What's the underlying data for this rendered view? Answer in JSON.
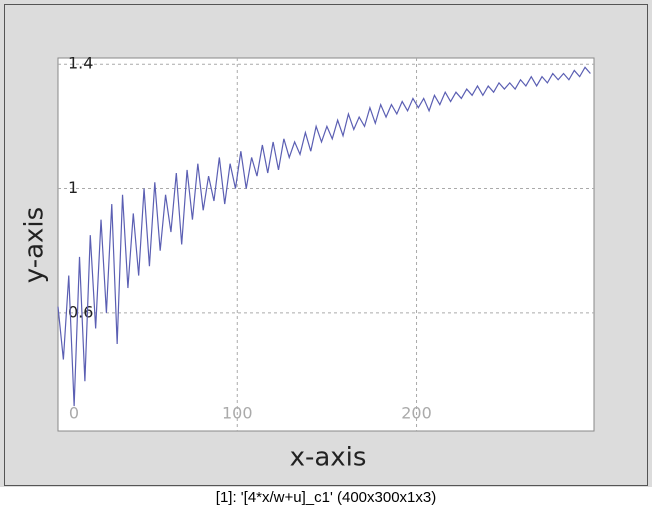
{
  "chart_data": {
    "type": "line",
    "x_label": "x-axis",
    "y_label": "y-axis",
    "xlim": [
      0,
      299
    ],
    "ylim": [
      0.22,
      1.42
    ],
    "xticks": [
      0,
      100,
      200
    ],
    "yticks": [
      1.4,
      1,
      0.6
    ],
    "grid": true,
    "x": [
      0,
      3,
      6,
      9,
      12,
      15,
      18,
      21,
      24,
      27,
      30,
      33,
      36,
      39,
      42,
      45,
      48,
      51,
      54,
      57,
      60,
      63,
      66,
      69,
      72,
      75,
      78,
      81,
      84,
      87,
      90,
      93,
      96,
      99,
      102,
      105,
      108,
      111,
      114,
      117,
      120,
      123,
      126,
      129,
      132,
      135,
      138,
      141,
      144,
      147,
      150,
      153,
      156,
      159,
      162,
      165,
      168,
      171,
      174,
      177,
      180,
      183,
      186,
      189,
      192,
      195,
      198,
      201,
      204,
      207,
      210,
      213,
      216,
      219,
      222,
      225,
      228,
      231,
      234,
      237,
      240,
      243,
      246,
      249,
      252,
      255,
      258,
      261,
      264,
      267,
      270,
      273,
      276,
      279,
      282,
      285,
      288,
      291,
      294,
      297
    ],
    "series": [
      {
        "color": "#5b5fb3",
        "values": [
          0.62,
          0.45,
          0.72,
          0.3,
          0.78,
          0.38,
          0.85,
          0.55,
          0.9,
          0.6,
          0.95,
          0.5,
          0.98,
          0.68,
          0.92,
          0.72,
          1.0,
          0.75,
          1.02,
          0.8,
          0.98,
          0.86,
          1.05,
          0.82,
          1.06,
          0.9,
          1.08,
          0.93,
          1.04,
          0.96,
          1.1,
          0.95,
          1.08,
          1.0,
          1.12,
          1.0,
          1.1,
          1.04,
          1.14,
          1.05,
          1.15,
          1.06,
          1.16,
          1.1,
          1.15,
          1.11,
          1.18,
          1.12,
          1.2,
          1.15,
          1.2,
          1.16,
          1.22,
          1.17,
          1.24,
          1.19,
          1.23,
          1.2,
          1.26,
          1.21,
          1.27,
          1.23,
          1.27,
          1.24,
          1.28,
          1.25,
          1.29,
          1.26,
          1.29,
          1.25,
          1.3,
          1.27,
          1.31,
          1.28,
          1.31,
          1.29,
          1.32,
          1.3,
          1.33,
          1.3,
          1.33,
          1.31,
          1.34,
          1.32,
          1.34,
          1.32,
          1.35,
          1.33,
          1.36,
          1.33,
          1.36,
          1.34,
          1.37,
          1.35,
          1.37,
          1.35,
          1.38,
          1.36,
          1.39,
          1.37
        ]
      }
    ]
  },
  "window": {
    "caption": "[1]: '[4*x/w+u]_c1' (400x300x1x3)"
  }
}
